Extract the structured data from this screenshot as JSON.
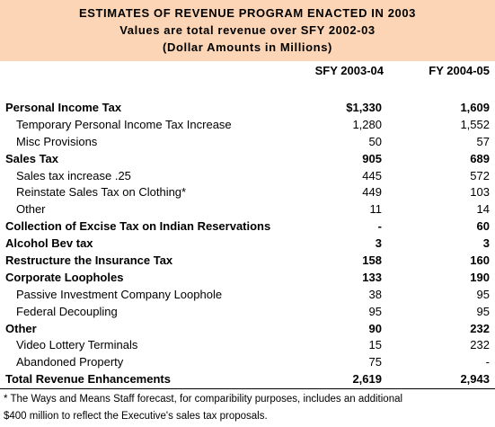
{
  "header": {
    "line1": "ESTIMATES OF REVENUE PROGRAM ENACTED IN 2003",
    "line2": "Values are total revenue over SFY 2002-03",
    "line3": "(Dollar Amounts in Millions)"
  },
  "columns": {
    "col1": "SFY 2003-04",
    "col2": "FY 2004-05"
  },
  "rows": [
    {
      "label": "Personal Income Tax",
      "v1": "$1,330",
      "v2": "1,609",
      "bold": true
    },
    {
      "label": "Temporary Personal Income Tax Increase",
      "v1": "1,280",
      "v2": "1,552",
      "bold": false
    },
    {
      "label": "Misc Provisions",
      "v1": "50",
      "v2": "57",
      "bold": false
    },
    {
      "label": "Sales Tax",
      "v1": "905",
      "v2": "689",
      "bold": true
    },
    {
      "label": "Sales tax increase .25",
      "v1": "445",
      "v2": "572",
      "bold": false
    },
    {
      "label": "Reinstate Sales Tax on Clothing*",
      "v1": "449",
      "v2": "103",
      "bold": false
    },
    {
      "label": "Other",
      "v1": "11",
      "v2": "14",
      "bold": false
    },
    {
      "label": "Collection of Excise Tax on Indian Reservations",
      "v1": "-",
      "v2": "60",
      "bold": true
    },
    {
      "label": "Alcohol Bev tax",
      "v1": "3",
      "v2": "3",
      "bold": true
    },
    {
      "label": "Restructure the Insurance Tax",
      "v1": "158",
      "v2": "160",
      "bold": true
    },
    {
      "label": "Corporate Loopholes",
      "v1": "133",
      "v2": "190",
      "bold": true
    },
    {
      "label": "Passive Investment Company Loophole",
      "v1": "38",
      "v2": "95",
      "bold": false
    },
    {
      "label": "Federal Decoupling",
      "v1": "95",
      "v2": "95",
      "bold": false
    },
    {
      "label": "Other",
      "v1": "90",
      "v2": "232",
      "bold": true
    },
    {
      "label": "Video Lottery Terminals",
      "v1": "15",
      "v2": "232",
      "bold": false
    },
    {
      "label": "Abandoned Property",
      "v1": "75",
      "v2": "-",
      "bold": false
    },
    {
      "label": "Total Revenue Enhancements",
      "v1": "2,619",
      "v2": "2,943",
      "bold": true
    }
  ],
  "footnote": {
    "line1": "* The Ways and Means Staff forecast, for comparibility purposes, includes an additional",
    "line2": "$400 million to reflect the Executive's sales tax proposals."
  },
  "colors": {
    "header_bg": "#fbd5b5",
    "text": "#000000"
  }
}
